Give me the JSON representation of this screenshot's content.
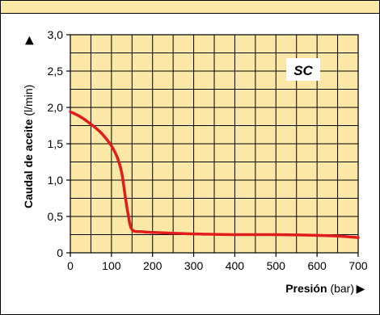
{
  "colors": {
    "plot_background": "#fbe8a6",
    "header_band": "#fbe8a6",
    "grid": "#000000",
    "curve": "#e01d1d",
    "label_box": "#ffffff"
  },
  "chart_data": {
    "type": "line",
    "title": "",
    "series_label": "SC",
    "xlabel_bold": "Presión",
    "xlabel_unit": "(bar)",
    "xlabel_arrow": "▶",
    "ylabel_bold": "Caudal de aceite",
    "ylabel_unit": "(l/min)",
    "ylabel_arrow": "▶",
    "xlim": [
      0,
      700
    ],
    "ylim": [
      0,
      3.0
    ],
    "x_ticks": [
      0,
      100,
      200,
      300,
      400,
      500,
      600,
      700
    ],
    "x_tick_labels": [
      "0",
      "100",
      "200",
      "300",
      "400",
      "500",
      "600",
      "700"
    ],
    "y_ticks": [
      0,
      0.5,
      1.0,
      1.5,
      2.0,
      2.5,
      3.0
    ],
    "y_tick_labels": [
      "0",
      "0,5",
      "1,0",
      "1,5",
      "2,0",
      "2,5",
      "3,0"
    ],
    "x_grid_step": 50,
    "y_grid_step": 0.25,
    "grid": true,
    "series": [
      {
        "x": [
          0,
          25,
          50,
          75,
          100,
          115,
          125,
          133,
          140,
          150,
          175,
          200,
          250,
          300,
          400,
          500,
          600,
          650,
          700
        ],
        "y": [
          1.94,
          1.87,
          1.77,
          1.65,
          1.47,
          1.3,
          1.1,
          0.8,
          0.55,
          0.32,
          0.29,
          0.28,
          0.27,
          0.26,
          0.25,
          0.25,
          0.24,
          0.23,
          0.21
        ]
      }
    ]
  }
}
